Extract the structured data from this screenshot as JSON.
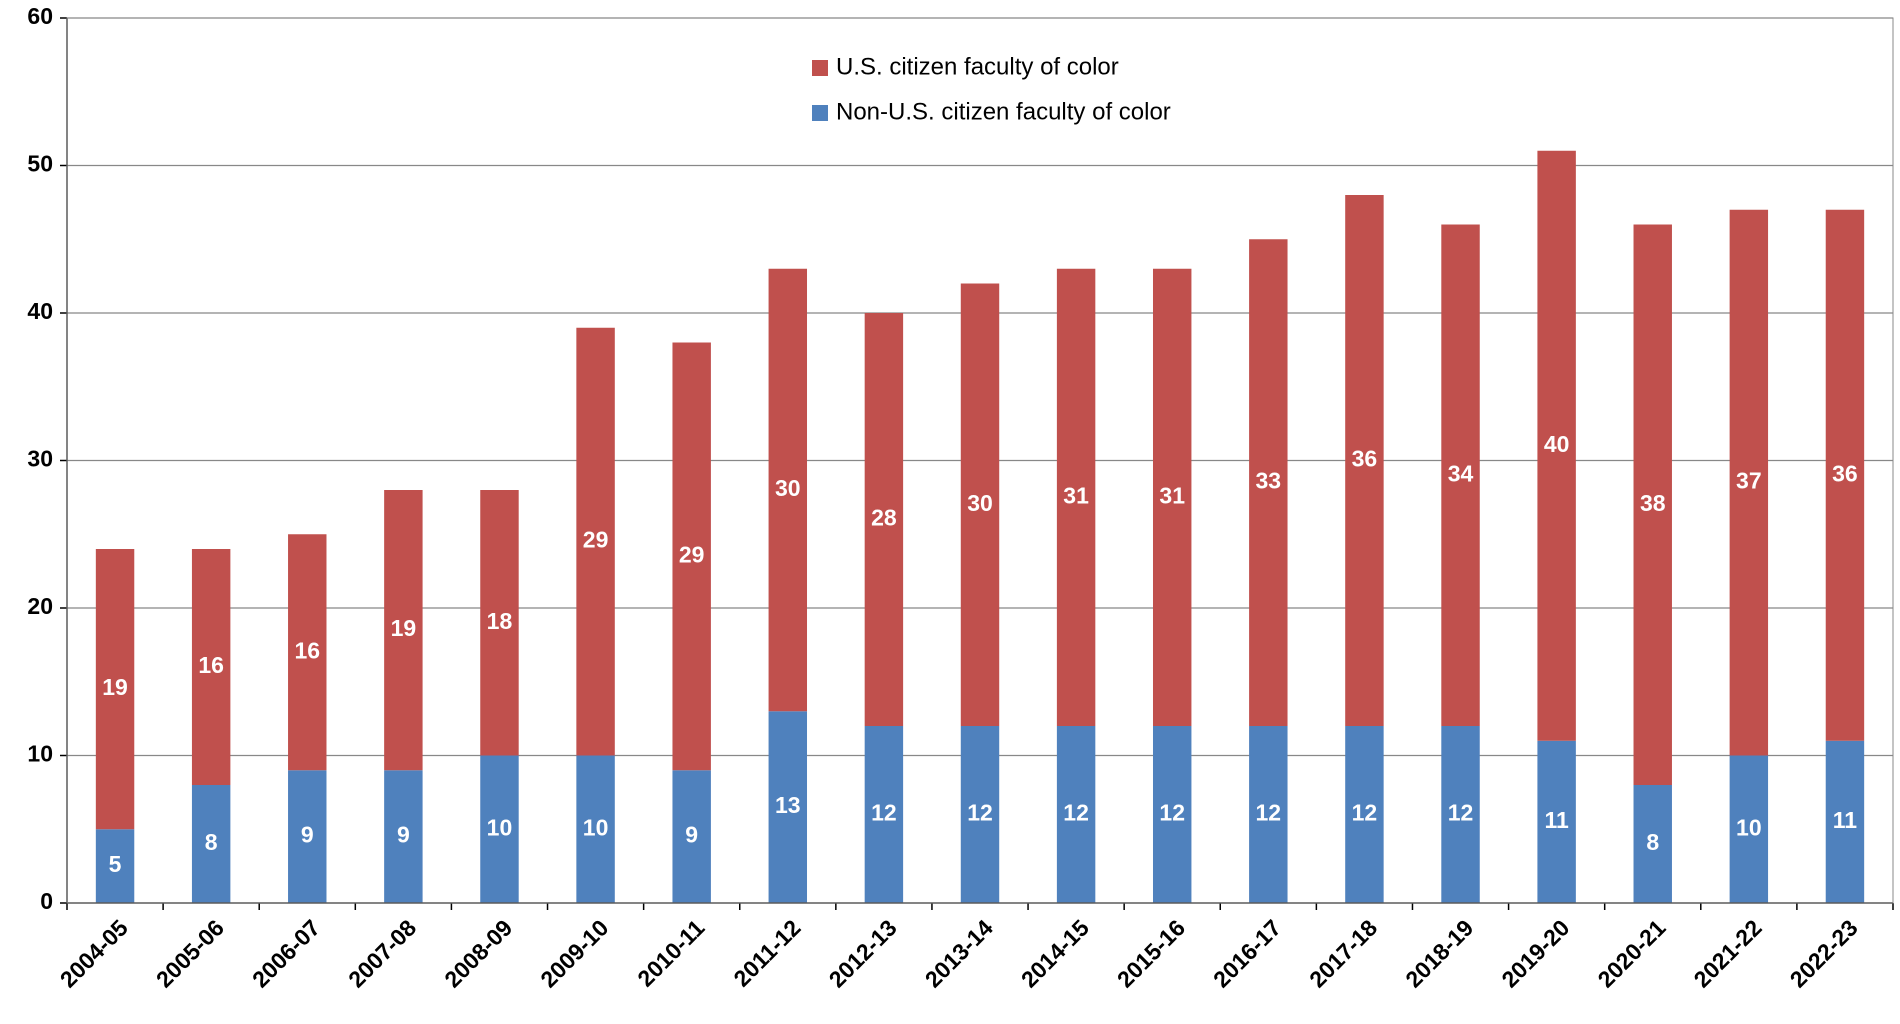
{
  "chart_data": {
    "type": "stacked-bar",
    "categories": [
      "2004-05",
      "2005-06",
      "2006-07",
      "2007-08",
      "2008-09",
      "2009-10",
      "2010-11",
      "2011-12",
      "2012-13",
      "2013-14",
      "2014-15",
      "2015-16",
      "2016-17",
      "2017-18",
      "2018-19",
      "2019-20",
      "2020-21",
      "2021-22",
      "2022-23"
    ],
    "series": [
      {
        "name": "Non-U.S. citizen faculty of color",
        "color": "#4f81bd",
        "values": [
          5,
          8,
          9,
          9,
          10,
          10,
          9,
          13,
          12,
          12,
          12,
          12,
          12,
          12,
          12,
          11,
          8,
          10,
          11
        ]
      },
      {
        "name": "U.S. citizen faculty of color",
        "color": "#c0504d",
        "values": [
          19,
          16,
          16,
          19,
          18,
          29,
          29,
          30,
          28,
          30,
          31,
          31,
          33,
          36,
          34,
          40,
          38,
          37,
          36
        ]
      }
    ],
    "ylim": [
      0,
      60
    ],
    "yticks": [
      0,
      10,
      20,
      30,
      40,
      50,
      60
    ],
    "grid": true,
    "legend": "top"
  }
}
